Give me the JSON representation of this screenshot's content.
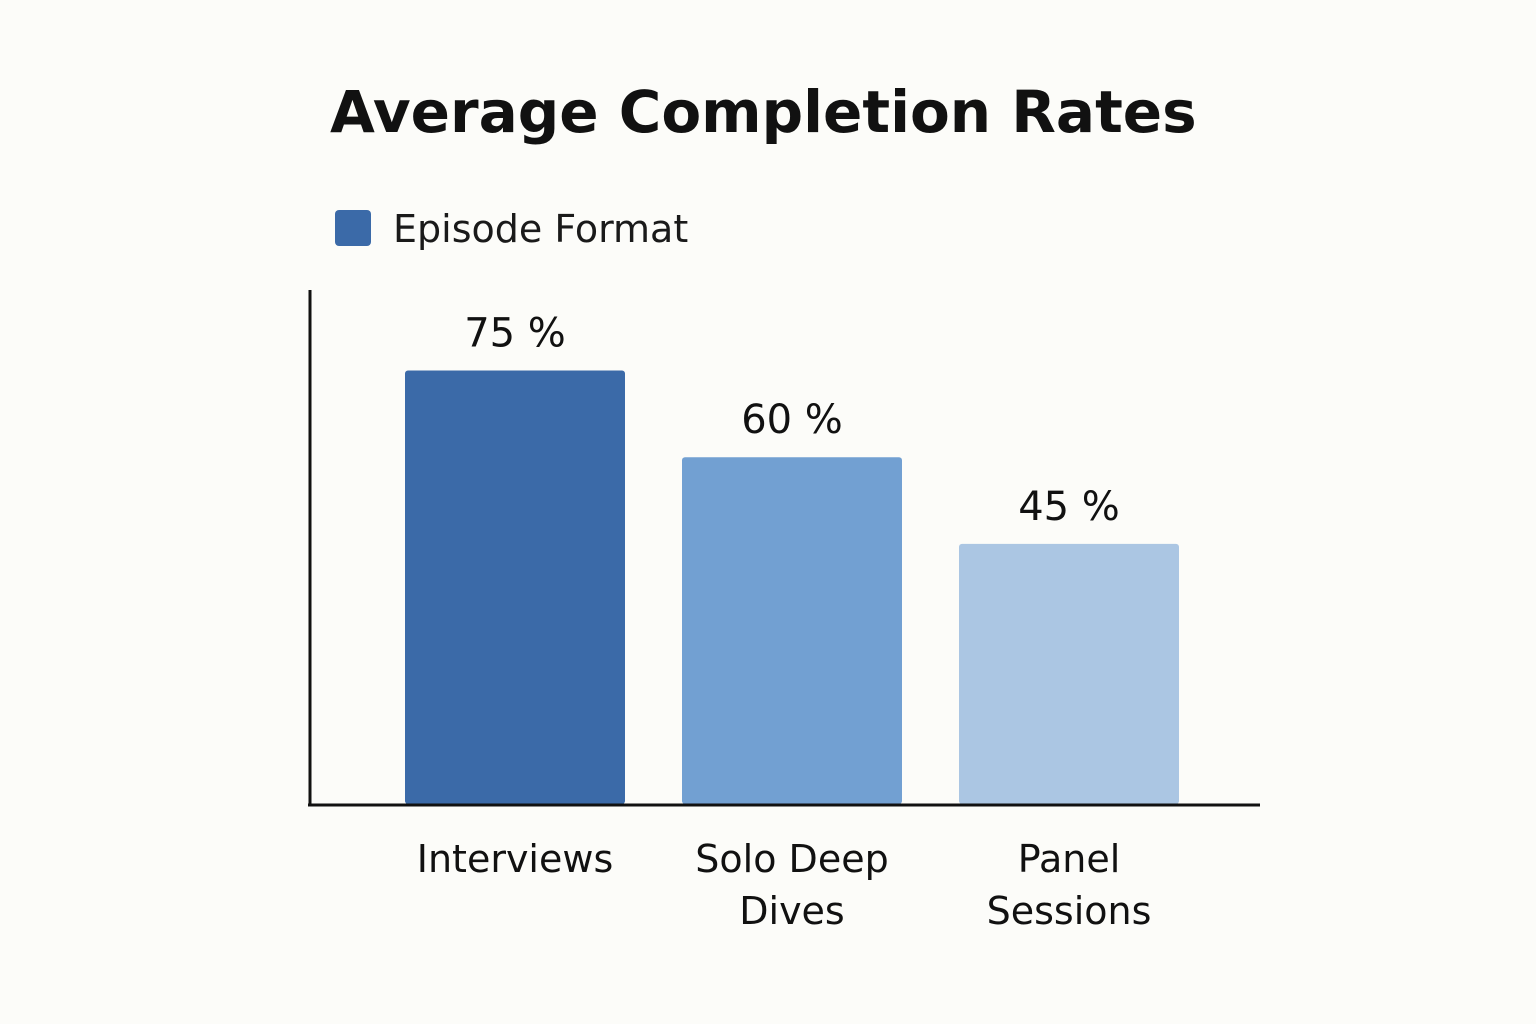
{
  "chart_data": {
    "type": "bar",
    "title": "Average Completion Rates",
    "legend": {
      "label": "Episode Format",
      "color": "#3b6aa8",
      "position": "top-left"
    },
    "categories": [
      [
        "Interviews"
      ],
      [
        "Solo Deep",
        "Dives"
      ],
      [
        "Panel",
        "Sessions"
      ]
    ],
    "series": [
      {
        "name": "Episode Format",
        "values": [
          75,
          60,
          45
        ],
        "value_labels": [
          "75 %",
          "60 %",
          "45 %"
        ],
        "colors": [
          "#3b6aa8",
          "#72a0d2",
          "#abc6e3"
        ]
      }
    ],
    "ylim": [
      0,
      100
    ],
    "grid": false,
    "xlabel": "",
    "ylabel": ""
  }
}
